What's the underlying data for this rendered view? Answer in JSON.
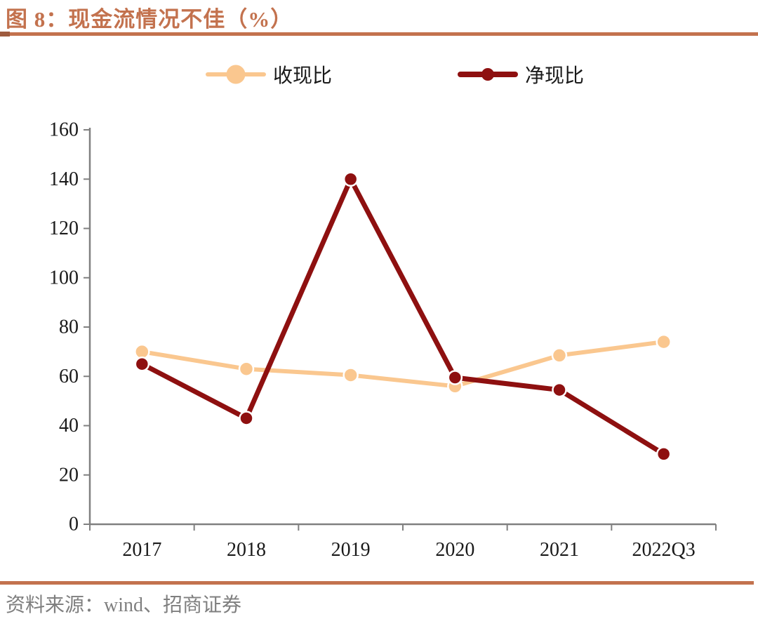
{
  "header": {
    "title": "图 8：现金流情况不佳（%）"
  },
  "footer": {
    "source": "资料来源：wind、招商证券"
  },
  "colors": {
    "accent": "#C3724E",
    "accent_dark": "#9E5B3F",
    "axis_line": "#808080",
    "tick_text": "#1A1A1A",
    "legend_text": "#1A1A1A",
    "source_text": "#7F7F7F"
  },
  "chart_data": {
    "type": "line",
    "title": "现金流情况不佳（%）",
    "figure_label": "图 8",
    "categories": [
      "2017",
      "2018",
      "2019",
      "2020",
      "2021",
      "2022Q3"
    ],
    "series": [
      {
        "name": "收现比",
        "color": "#FAC78F",
        "values": [
          70,
          63,
          60.5,
          56,
          68.5,
          74
        ]
      },
      {
        "name": "净现比",
        "color": "#8E1010",
        "values": [
          65,
          43,
          140,
          59.5,
          54.5,
          28.5
        ]
      }
    ],
    "xlabel": "",
    "ylabel": "",
    "ylim": [
      0,
      160
    ],
    "ytick_step": 20,
    "grid": false,
    "legend_position": "top"
  }
}
